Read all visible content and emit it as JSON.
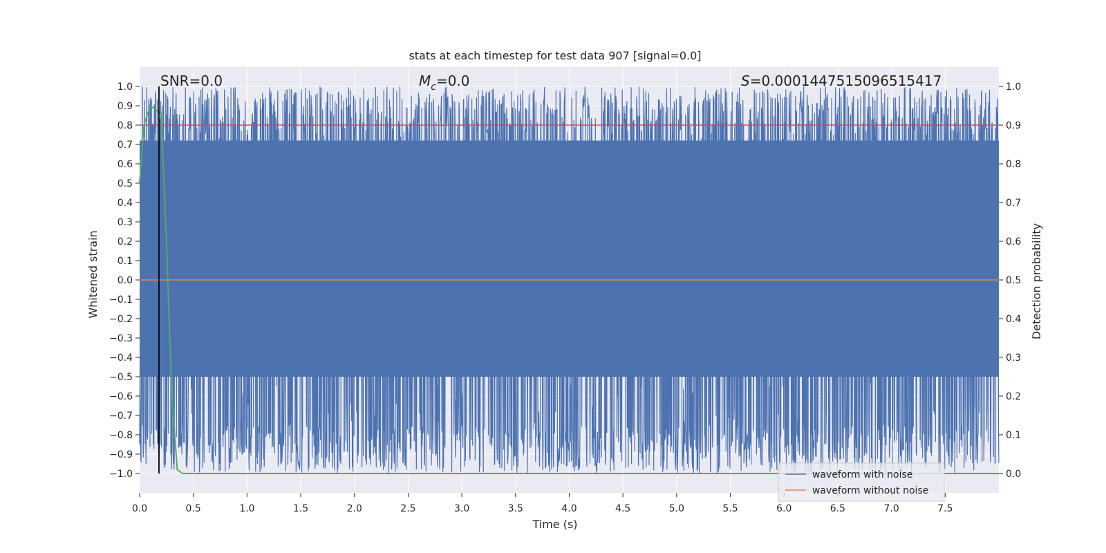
{
  "chart_data": {
    "type": "line",
    "title": "stats at each timestep for test data 907 [signal=0.0]",
    "xlabel": "Time (s)",
    "ylabel": "Whitened strain",
    "y2label": "Detection probability",
    "xlim": [
      0.0,
      8.0
    ],
    "ylim": [
      -1.1,
      1.1
    ],
    "y2lim": [
      -0.05,
      1.05
    ],
    "xticks": [
      "0.0",
      "0.5",
      "1.0",
      "1.5",
      "2.0",
      "2.5",
      "3.0",
      "3.5",
      "4.0",
      "4.5",
      "5.0",
      "5.5",
      "6.0",
      "6.5",
      "7.0",
      "7.5"
    ],
    "yticks": [
      "1.0",
      "0.9",
      "0.8",
      "0.7",
      "0.6",
      "0.5",
      "0.4",
      "0.3",
      "0.2",
      "0.1",
      "0.0",
      "−0.1",
      "−0.2",
      "−0.3",
      "−0.4",
      "−0.5",
      "−0.6",
      "−0.7",
      "−0.8",
      "−0.9",
      "−1.0"
    ],
    "y2ticks": [
      "1.0",
      "0.9",
      "0.8",
      "0.7",
      "0.6",
      "0.5",
      "0.4",
      "0.3",
      "0.2",
      "0.1",
      "0.0"
    ],
    "grid": true,
    "legend_placement": "lower-right",
    "annotations": {
      "snr": "SNR=0.0",
      "mc_symbol": "M",
      "mc_sub": "c",
      "mc_value": "=0.0",
      "s_symbol": "S",
      "s_value": "=0.0001447515096515417"
    },
    "series": [
      {
        "name": "waveform with noise",
        "color": "#4c72b0",
        "note": "dense noise signal filling approximately -1.0 to 1.0 over the whole time range"
      },
      {
        "name": "waveform without noise",
        "color": "#dd8452",
        "x": [
          0.0,
          8.0
        ],
        "y": [
          0.0,
          0.0
        ]
      }
    ],
    "probability_line": {
      "color": "#55a868",
      "x": [
        0.0,
        0.04,
        0.1,
        0.2,
        0.25,
        0.3,
        0.35,
        0.4,
        8.0
      ],
      "y": [
        0.75,
        0.9,
        0.95,
        0.93,
        0.6,
        0.2,
        0.01,
        0.0,
        0.0
      ]
    },
    "threshold_line": {
      "color": "#c44e52",
      "y2": 0.9
    },
    "marker_line": {
      "color": "#000000",
      "x": 0.18
    }
  }
}
